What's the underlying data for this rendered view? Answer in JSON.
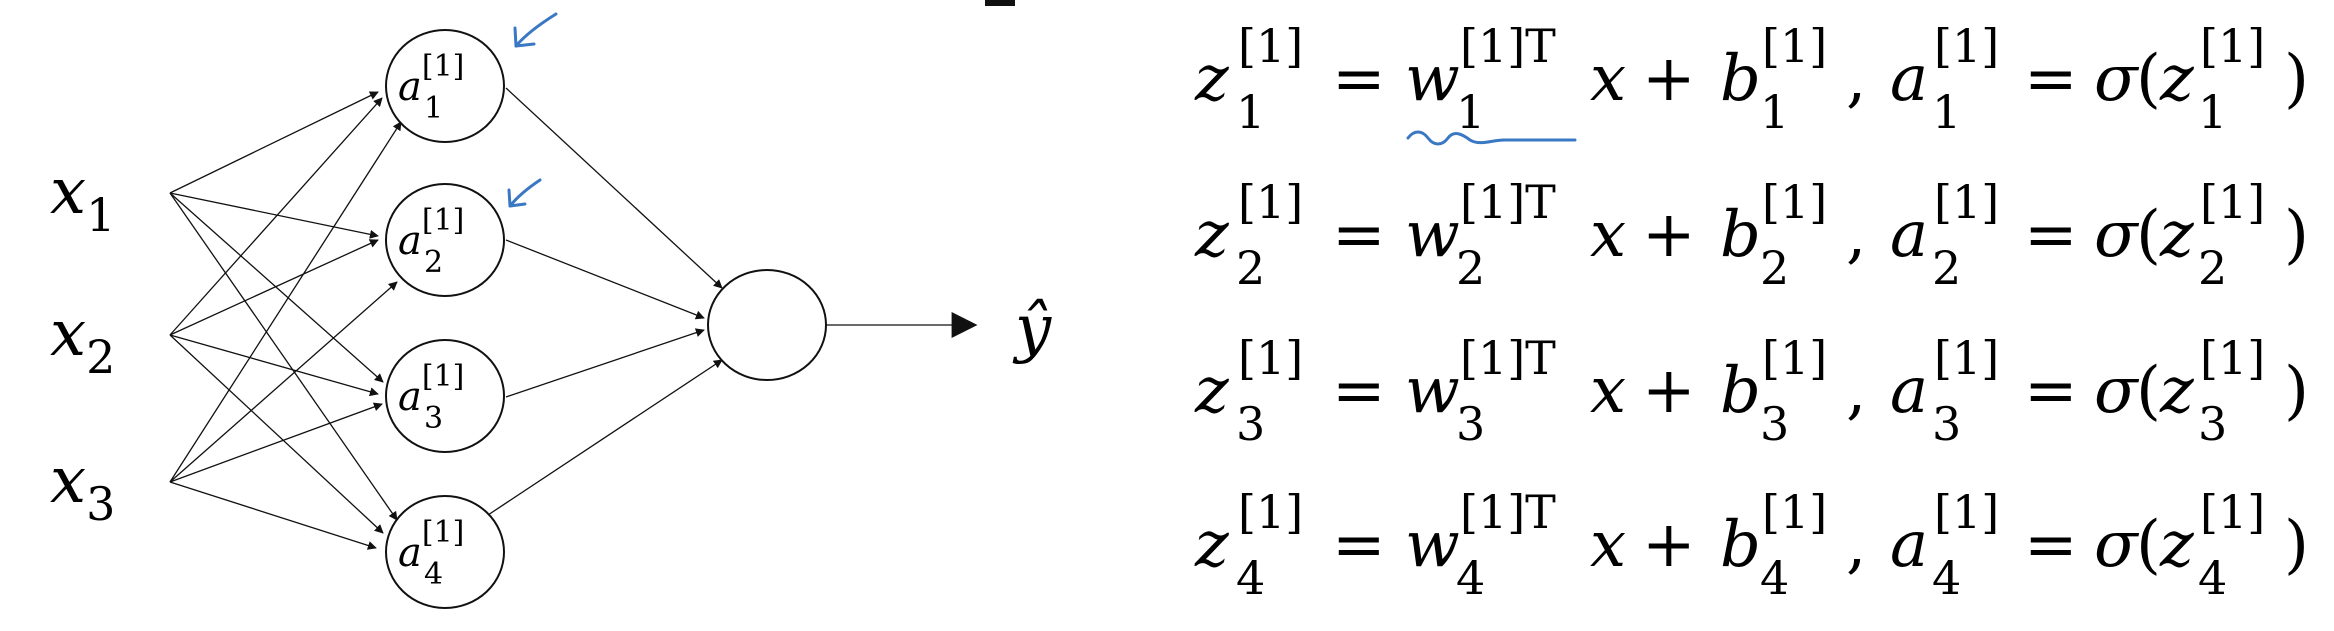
{
  "network": {
    "inputs": [
      {
        "base": "x",
        "sub": "1"
      },
      {
        "base": "x",
        "sub": "2"
      },
      {
        "base": "x",
        "sub": "3"
      }
    ],
    "hidden_units": [
      {
        "base": "a",
        "sup": "[1]",
        "sub": "1"
      },
      {
        "base": "a",
        "sup": "[1]",
        "sub": "2"
      },
      {
        "base": "a",
        "sup": "[1]",
        "sub": "3"
      },
      {
        "base": "a",
        "sup": "[1]",
        "sub": "4"
      }
    ],
    "output_label": "ŷ"
  },
  "equations": [
    {
      "z": "z",
      "w": "w",
      "b": "b",
      "a": "a",
      "x": "x",
      "sigma": "σ",
      "layer": "[1]",
      "transpose": "[1]T",
      "index": "1",
      "eq": "=",
      "plus": "+",
      "comma": ",",
      "lparen": "(",
      "rparen": ")"
    },
    {
      "z": "z",
      "w": "w",
      "b": "b",
      "a": "a",
      "x": "x",
      "sigma": "σ",
      "layer": "[1]",
      "transpose": "[1]T",
      "index": "2",
      "eq": "=",
      "plus": "+",
      "comma": ",",
      "lparen": "(",
      "rparen": ")"
    },
    {
      "z": "z",
      "w": "w",
      "b": "b",
      "a": "a",
      "x": "x",
      "sigma": "σ",
      "layer": "[1]",
      "transpose": "[1]T",
      "index": "3",
      "eq": "=",
      "plus": "+",
      "comma": ",",
      "lparen": "(",
      "rparen": ")"
    },
    {
      "z": "z",
      "w": "w",
      "b": "b",
      "a": "a",
      "x": "x",
      "sigma": "σ",
      "layer": "[1]",
      "transpose": "[1]T",
      "index": "4",
      "eq": "=",
      "plus": "+",
      "comma": ",",
      "lparen": "(",
      "rparen": ")"
    }
  ],
  "colors": {
    "ink": "#111111",
    "annotation": "#3a78c3"
  }
}
